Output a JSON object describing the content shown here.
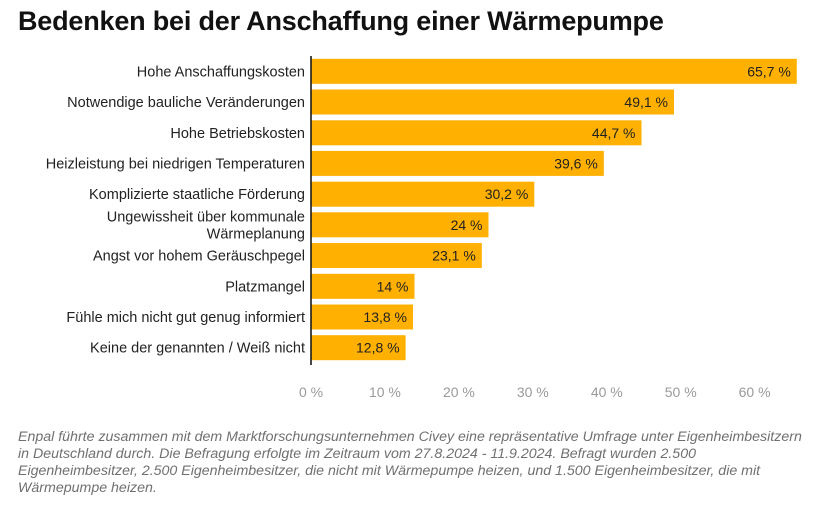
{
  "chart_data": {
    "type": "bar",
    "orientation": "horizontal",
    "title": "Bedenken bei der Anschaffung einer Wärmepumpe",
    "categories": [
      "Hohe Anschaffungskosten",
      "Notwendige bauliche Veränderungen",
      "Hohe Betriebskosten",
      "Heizleistung bei niedrigen Temperaturen",
      "Komplizierte staatliche Förderung",
      "Ungewissheit über kommunale Wärmeplanung",
      "Angst vor hohem Geräuschpegel",
      "Platzmangel",
      "Fühle mich nicht gut genug informiert",
      "Keine der genannten / Weiß nicht"
    ],
    "category_lines": [
      [
        "Hohe Anschaffungskosten"
      ],
      [
        "Notwendige bauliche Veränderungen"
      ],
      [
        "Hohe Betriebskosten"
      ],
      [
        "Heizleistung bei niedrigen Temperaturen"
      ],
      [
        "Komplizierte staatliche Förderung"
      ],
      [
        "Ungewissheit über kommunale",
        "Wärmeplanung"
      ],
      [
        "Angst vor hohem Geräuschpegel"
      ],
      [
        "Platzmangel"
      ],
      [
        "Fühle mich nicht gut genug informiert"
      ],
      [
        "Keine der genannten / Weiß nicht"
      ]
    ],
    "values": [
      65.7,
      49.1,
      44.7,
      39.6,
      30.2,
      24,
      23.1,
      14,
      13.8,
      12.8
    ],
    "value_labels": [
      "65,7 %",
      "49,1 %",
      "44,7 %",
      "39,6 %",
      "30,2 %",
      "24 %",
      "23,1 %",
      "14 %",
      "13,8 %",
      "12,8 %"
    ],
    "xlim": [
      0,
      66
    ],
    "xticks": [
      0,
      10,
      20,
      30,
      40,
      50,
      60
    ],
    "xtick_labels": [
      "0 %",
      "10 %",
      "20 %",
      "30 %",
      "40 %",
      "50 %",
      "60 %"
    ],
    "grid": false,
    "bar_color": "#FFB000",
    "axis_color": "#1a1a1a"
  },
  "footnote": "Enpal führte zusammen mit dem Marktforschungsunternehmen Civey eine repräsentative Umfrage unter Eigenheimbesitzern in Deutschland durch. Die Befragung erfolgte im Zeitraum vom 27.8.2024 - 11.9.2024. Befragt wurden 2.500 Eigenheimbesitzer, 2.500 Eigenheimbesitzer, die nicht mit Wärmepumpe heizen, und 1.500 Eigenheimbesitzer, die mit Wärmepumpe heizen."
}
